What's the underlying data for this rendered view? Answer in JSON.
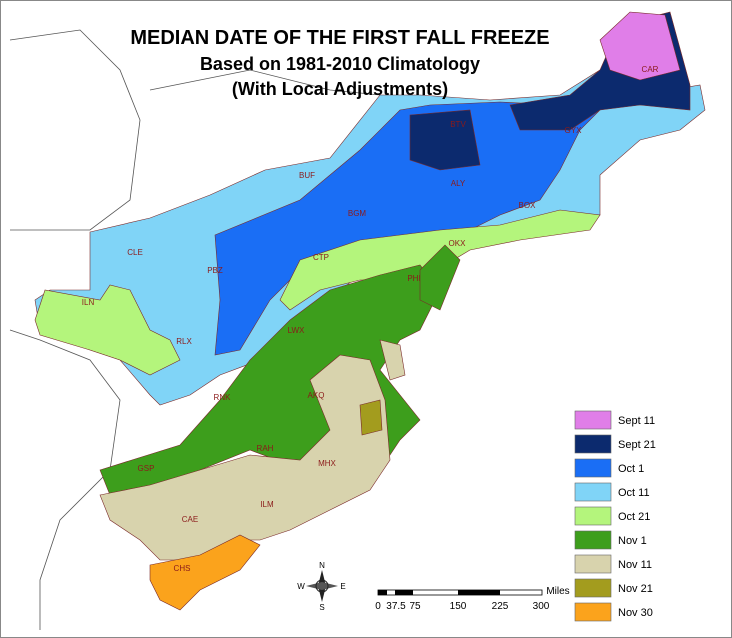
{
  "title": "MEDIAN DATE OF THE FIRST FALL FREEZE",
  "subtitle": "Based on 1981-2010 Climatology",
  "subtitle2": "(With Local Adjustments)",
  "legend": {
    "items": [
      {
        "label": "Sept 11",
        "color": "#e07ee8"
      },
      {
        "label": "Sept 21",
        "color": "#0c2a6e"
      },
      {
        "label": "Oct 1",
        "color": "#1a6ef5"
      },
      {
        "label": "Oct 11",
        "color": "#80d4f7"
      },
      {
        "label": "Oct 21",
        "color": "#b4f57c"
      },
      {
        "label": "Nov 1",
        "color": "#3d9e1c"
      },
      {
        "label": "Nov 11",
        "color": "#d8d3ad"
      },
      {
        "label": "Nov 21",
        "color": "#a39c1e"
      },
      {
        "label": "Nov 30",
        "color": "#fba31c"
      }
    ]
  },
  "offices": [
    "CAR",
    "GYX",
    "BTV",
    "ALY",
    "BOX",
    "BUF",
    "BGM",
    "OKX",
    "CTP",
    "PHI",
    "CLE",
    "PBZ",
    "ILN",
    "RLX",
    "LWX",
    "AKQ",
    "RNK",
    "RAH",
    "MHX",
    "GSP",
    "ILM",
    "CAE",
    "CHS"
  ],
  "scale": {
    "unit": "Miles",
    "ticks": [
      "0",
      "37.5",
      "75",
      "150",
      "225",
      "300"
    ]
  },
  "compass": {
    "n": "N",
    "s": "S",
    "e": "E",
    "w": "W"
  }
}
